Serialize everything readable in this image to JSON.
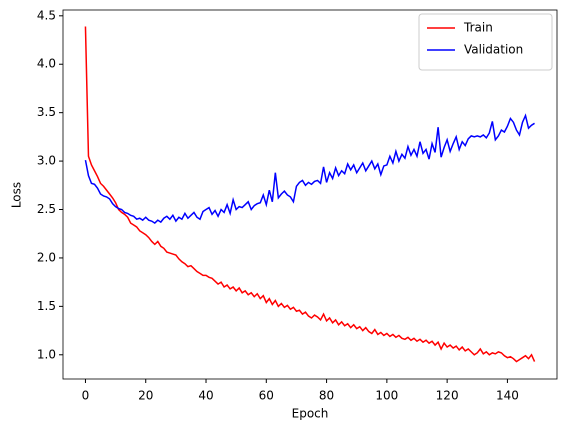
{
  "chart_data": {
    "type": "line",
    "xlabel": "Epoch",
    "ylabel": "Loss",
    "x": [
      0,
      1,
      2,
      3,
      4,
      5,
      6,
      7,
      8,
      9,
      10,
      11,
      12,
      13,
      14,
      15,
      16,
      17,
      18,
      19,
      20,
      21,
      22,
      23,
      24,
      25,
      26,
      27,
      28,
      29,
      30,
      31,
      32,
      33,
      34,
      35,
      36,
      37,
      38,
      39,
      40,
      41,
      42,
      43,
      44,
      45,
      46,
      47,
      48,
      49,
      50,
      51,
      52,
      53,
      54,
      55,
      56,
      57,
      58,
      59,
      60,
      61,
      62,
      63,
      64,
      65,
      66,
      67,
      68,
      69,
      70,
      71,
      72,
      73,
      74,
      75,
      76,
      77,
      78,
      79,
      80,
      81,
      82,
      83,
      84,
      85,
      86,
      87,
      88,
      89,
      90,
      91,
      92,
      93,
      94,
      95,
      96,
      97,
      98,
      99,
      100,
      101,
      102,
      103,
      104,
      105,
      106,
      107,
      108,
      109,
      110,
      111,
      112,
      113,
      114,
      115,
      116,
      117,
      118,
      119,
      120,
      121,
      122,
      123,
      124,
      125,
      126,
      127,
      128,
      129,
      130,
      131,
      132,
      133,
      134,
      135,
      136,
      137,
      138,
      139,
      140,
      141,
      142,
      143,
      144,
      145,
      146,
      147,
      148,
      149
    ],
    "series": [
      {
        "name": "Train",
        "color": "#ff0000",
        "values": [
          4.39,
          3.05,
          2.96,
          2.9,
          2.84,
          2.77,
          2.74,
          2.7,
          2.66,
          2.62,
          2.57,
          2.5,
          2.47,
          2.45,
          2.42,
          2.36,
          2.34,
          2.32,
          2.28,
          2.26,
          2.24,
          2.21,
          2.17,
          2.14,
          2.17,
          2.12,
          2.1,
          2.06,
          2.05,
          2.04,
          2.03,
          1.99,
          1.96,
          1.94,
          1.91,
          1.92,
          1.89,
          1.86,
          1.84,
          1.82,
          1.82,
          1.8,
          1.79,
          1.76,
          1.73,
          1.75,
          1.7,
          1.72,
          1.68,
          1.7,
          1.66,
          1.69,
          1.64,
          1.66,
          1.62,
          1.64,
          1.6,
          1.63,
          1.58,
          1.61,
          1.54,
          1.58,
          1.52,
          1.56,
          1.5,
          1.53,
          1.49,
          1.51,
          1.47,
          1.49,
          1.45,
          1.46,
          1.42,
          1.44,
          1.4,
          1.38,
          1.41,
          1.39,
          1.36,
          1.42,
          1.35,
          1.38,
          1.33,
          1.36,
          1.31,
          1.34,
          1.3,
          1.32,
          1.28,
          1.31,
          1.27,
          1.29,
          1.25,
          1.28,
          1.24,
          1.22,
          1.26,
          1.21,
          1.23,
          1.2,
          1.22,
          1.19,
          1.21,
          1.18,
          1.2,
          1.17,
          1.16,
          1.18,
          1.15,
          1.17,
          1.14,
          1.16,
          1.13,
          1.15,
          1.12,
          1.14,
          1.1,
          1.13,
          1.06,
          1.12,
          1.08,
          1.1,
          1.07,
          1.09,
          1.05,
          1.08,
          1.04,
          1.06,
          1.03,
          1.0,
          1.02,
          1.06,
          1.01,
          1.03,
          1.0,
          1.02,
          1.01,
          1.03,
          1.02,
          0.99,
          0.97,
          0.98,
          0.96,
          0.93,
          0.95,
          0.97,
          0.99,
          0.96,
          1.0,
          0.93
        ]
      },
      {
        "name": "Validation",
        "color": "#0000ff",
        "values": [
          3.01,
          2.85,
          2.77,
          2.76,
          2.72,
          2.66,
          2.64,
          2.63,
          2.61,
          2.56,
          2.53,
          2.51,
          2.5,
          2.47,
          2.46,
          2.44,
          2.43,
          2.4,
          2.41,
          2.39,
          2.42,
          2.39,
          2.38,
          2.36,
          2.39,
          2.37,
          2.41,
          2.43,
          2.4,
          2.44,
          2.38,
          2.42,
          2.4,
          2.46,
          2.41,
          2.44,
          2.47,
          2.42,
          2.4,
          2.48,
          2.5,
          2.52,
          2.45,
          2.49,
          2.43,
          2.5,
          2.47,
          2.55,
          2.46,
          2.6,
          2.5,
          2.53,
          2.52,
          2.55,
          2.58,
          2.5,
          2.54,
          2.56,
          2.57,
          2.65,
          2.55,
          2.7,
          2.58,
          2.88,
          2.62,
          2.66,
          2.69,
          2.65,
          2.63,
          2.58,
          2.74,
          2.78,
          2.8,
          2.75,
          2.78,
          2.76,
          2.79,
          2.8,
          2.77,
          2.94,
          2.78,
          2.88,
          2.82,
          2.93,
          2.85,
          2.9,
          2.87,
          2.97,
          2.91,
          2.96,
          2.88,
          2.93,
          2.98,
          2.9,
          2.95,
          3.0,
          2.92,
          2.97,
          2.86,
          2.95,
          2.96,
          3.05,
          2.98,
          3.1,
          3.0,
          3.07,
          3.03,
          3.15,
          3.06,
          3.12,
          3.05,
          3.2,
          3.08,
          3.12,
          3.02,
          3.18,
          3.09,
          3.35,
          3.04,
          3.14,
          3.22,
          3.1,
          3.18,
          3.25,
          3.12,
          3.2,
          3.16,
          3.23,
          3.26,
          3.25,
          3.26,
          3.25,
          3.27,
          3.24,
          3.29,
          3.41,
          3.22,
          3.26,
          3.32,
          3.3,
          3.36,
          3.44,
          3.4,
          3.32,
          3.27,
          3.4,
          3.47,
          3.34,
          3.37,
          3.39
        ]
      }
    ],
    "xlim": [
      -7.45,
      156.45
    ],
    "ylim": [
      0.75,
      4.56
    ],
    "xticks": [
      0,
      20,
      40,
      60,
      80,
      100,
      120,
      140
    ],
    "yticks": [
      {
        "value": 1,
        "label": "1.0"
      },
      {
        "value": 1.5,
        "label": "1.5"
      },
      {
        "value": 2,
        "label": "2.0"
      },
      {
        "value": 2.5,
        "label": "2.5"
      },
      {
        "value": 3,
        "label": "3.0"
      },
      {
        "value": 3.5,
        "label": "3.5"
      },
      {
        "value": 4,
        "label": "4.0"
      },
      {
        "value": 4.5,
        "label": "4.5"
      }
    ],
    "grid": false,
    "legend": "upper right"
  }
}
